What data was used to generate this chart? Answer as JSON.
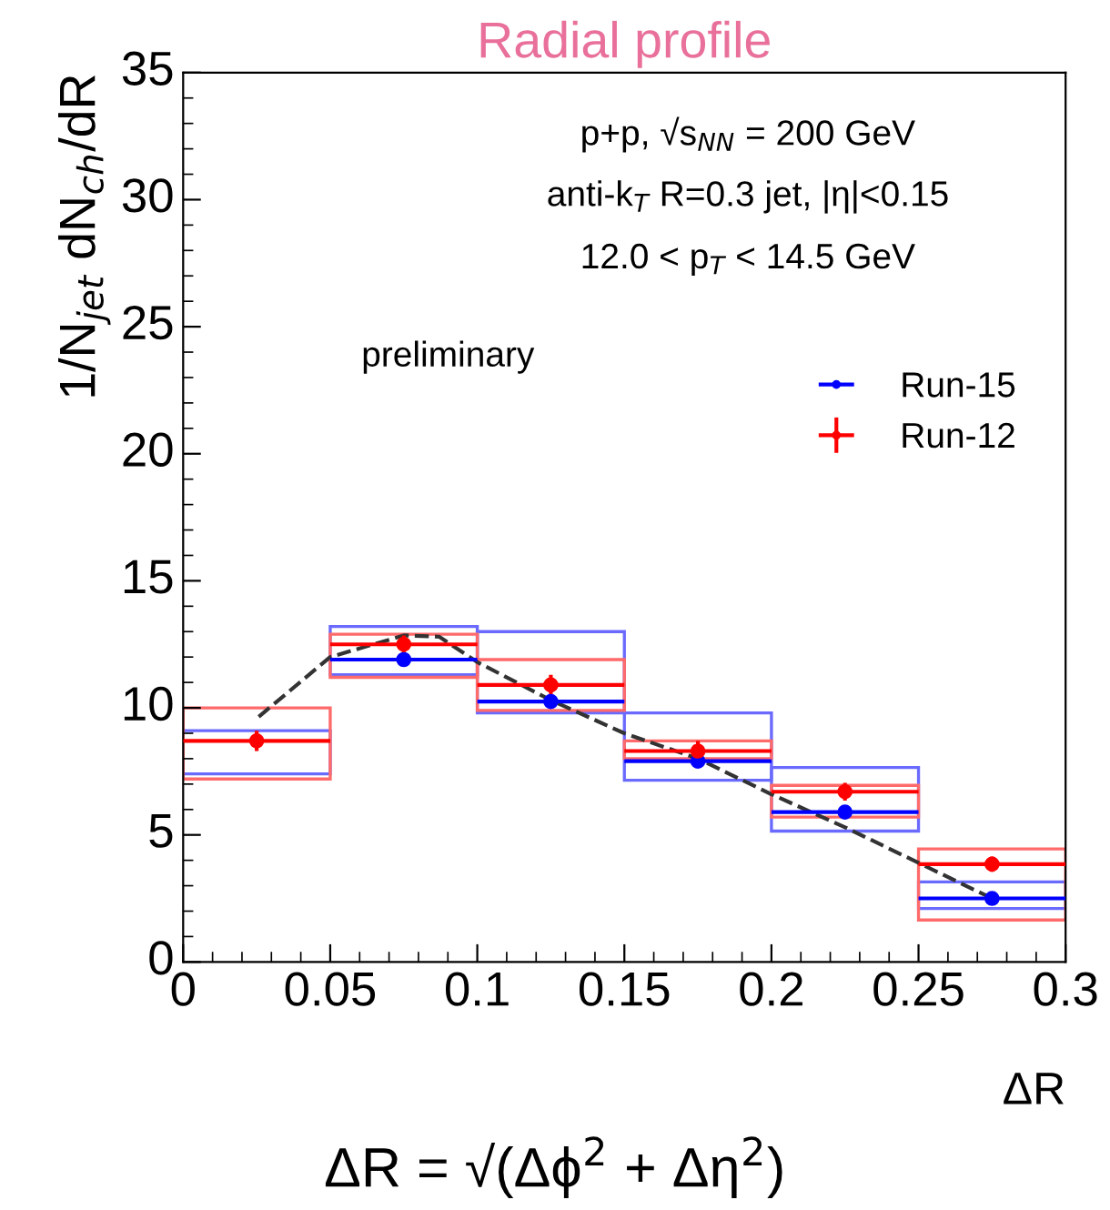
{
  "chart_data": {
    "type": "scatter",
    "title": "Radial profile",
    "xlabel": "ΔR",
    "ylabel": "1/N$_{jet}$ dN$_{ch}$/dR",
    "xlim": [
      0,
      0.3
    ],
    "xticks": [
      0,
      0.05,
      0.1,
      0.15,
      0.2,
      0.25,
      0.3
    ],
    "ylim": [
      0,
      35
    ],
    "yticks": [
      0,
      5,
      10,
      15,
      20,
      25,
      30,
      35
    ],
    "grid": false,
    "legend": "top right",
    "marker": "circle",
    "annotations": [
      "p+p, √s$_{NN}$ = 200 GeV",
      "anti-k$_{T}$ R=0.3 jet, |η|<0.15",
      "12.0 < p$_{T}$ < 14.5 GeV",
      "preliminary",
      "ΔR = √(Δϕ$^{2}$ + Δη$^{2}$)"
    ],
    "x": [
      0.025,
      0.075,
      0.125,
      0.175,
      0.225,
      0.275
    ],
    "series": [
      {
        "type": "bar",
        "color": "#6a6aff",
        "base": [
          7.4,
          11.3,
          9.8,
          7.15,
          5.15,
          2.1
        ],
        "values": [
          1.7,
          1.9,
          3.2,
          2.65,
          2.5,
          1.05
        ]
      },
      {
        "type": "bar",
        "color": "#ff6a6a",
        "base": [
          7.2,
          11.2,
          9.9,
          8.0,
          5.7,
          1.65
        ],
        "values": [
          2.8,
          1.7,
          2.0,
          0.7,
          1.25,
          2.8
        ]
      },
      {
        "type": "line",
        "line_style": "dashed",
        "marker": "none",
        "color": "#333333",
        "x": [
          0.0257,
          0.05,
          0.075,
          0.087,
          0.1,
          0.125,
          0.15,
          0.175,
          0.2,
          0.225,
          0.25,
          0.275
        ],
        "values": [
          9.65,
          12.0,
          12.85,
          12.8,
          11.8,
          10.3,
          9.0,
          8.0,
          6.6,
          5.3,
          3.9,
          2.5
        ]
      },
      {
        "name": "Run-15",
        "color": "#0000ff",
        "values": [
          null,
          11.9,
          10.25,
          7.9,
          5.9,
          2.5
        ],
        "xerrors": [
          null,
          0.025,
          0.025,
          0.025,
          0.025,
          0.025
        ]
      },
      {
        "name": "Run-12",
        "color": "#ff0000",
        "values": [
          8.7,
          12.5,
          10.9,
          8.3,
          6.7,
          3.85
        ],
        "errors": [
          0.4,
          0.35,
          0.4,
          0.4,
          0.35,
          0.3
        ],
        "xerrors": [
          0.025,
          0.025,
          0.025,
          0.025,
          0.025,
          0.025
        ]
      }
    ]
  }
}
